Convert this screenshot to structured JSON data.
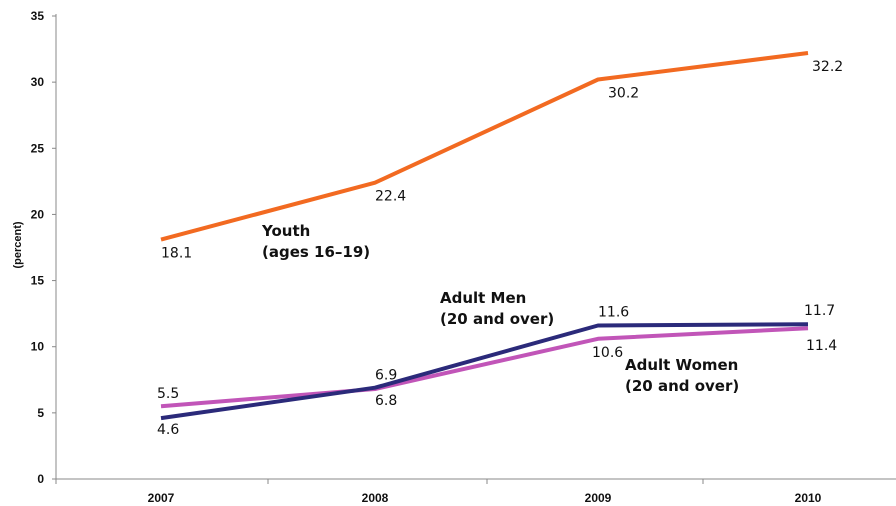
{
  "chart_data": {
    "type": "line",
    "x": [
      "2007",
      "2008",
      "2009",
      "2010"
    ],
    "ylabel": "(percent)",
    "xlabel": "",
    "ylim": [
      0,
      35
    ],
    "yticks": [
      0,
      5,
      10,
      15,
      20,
      25,
      30,
      35
    ],
    "grid": false,
    "series": [
      {
        "name": "Youth (ages 16–19)",
        "color": "#f26a21",
        "values": [
          18.1,
          22.4,
          30.2,
          32.2
        ],
        "labels": [
          "18.1",
          "22.4",
          "30.2",
          "32.2"
        ]
      },
      {
        "name": "Adult Men (20 and over)",
        "color": "#2b2a7a",
        "values": [
          4.6,
          6.9,
          11.6,
          11.7
        ],
        "labels": [
          "4.6",
          "6.9",
          "11.6",
          "11.7"
        ]
      },
      {
        "name": "Adult Women (20 and over)",
        "color": "#c155b8",
        "values": [
          5.5,
          6.8,
          10.6,
          11.4
        ],
        "labels": [
          "5.5",
          "6.8",
          "10.6",
          "11.4"
        ]
      }
    ],
    "annotations": [
      {
        "lines": [
          "Youth",
          "(ages 16–19)"
        ]
      },
      {
        "lines": [
          "Adult Men",
          "(20 and over)"
        ]
      },
      {
        "lines": [
          "Adult Women",
          "(20 and over)"
        ]
      }
    ]
  }
}
